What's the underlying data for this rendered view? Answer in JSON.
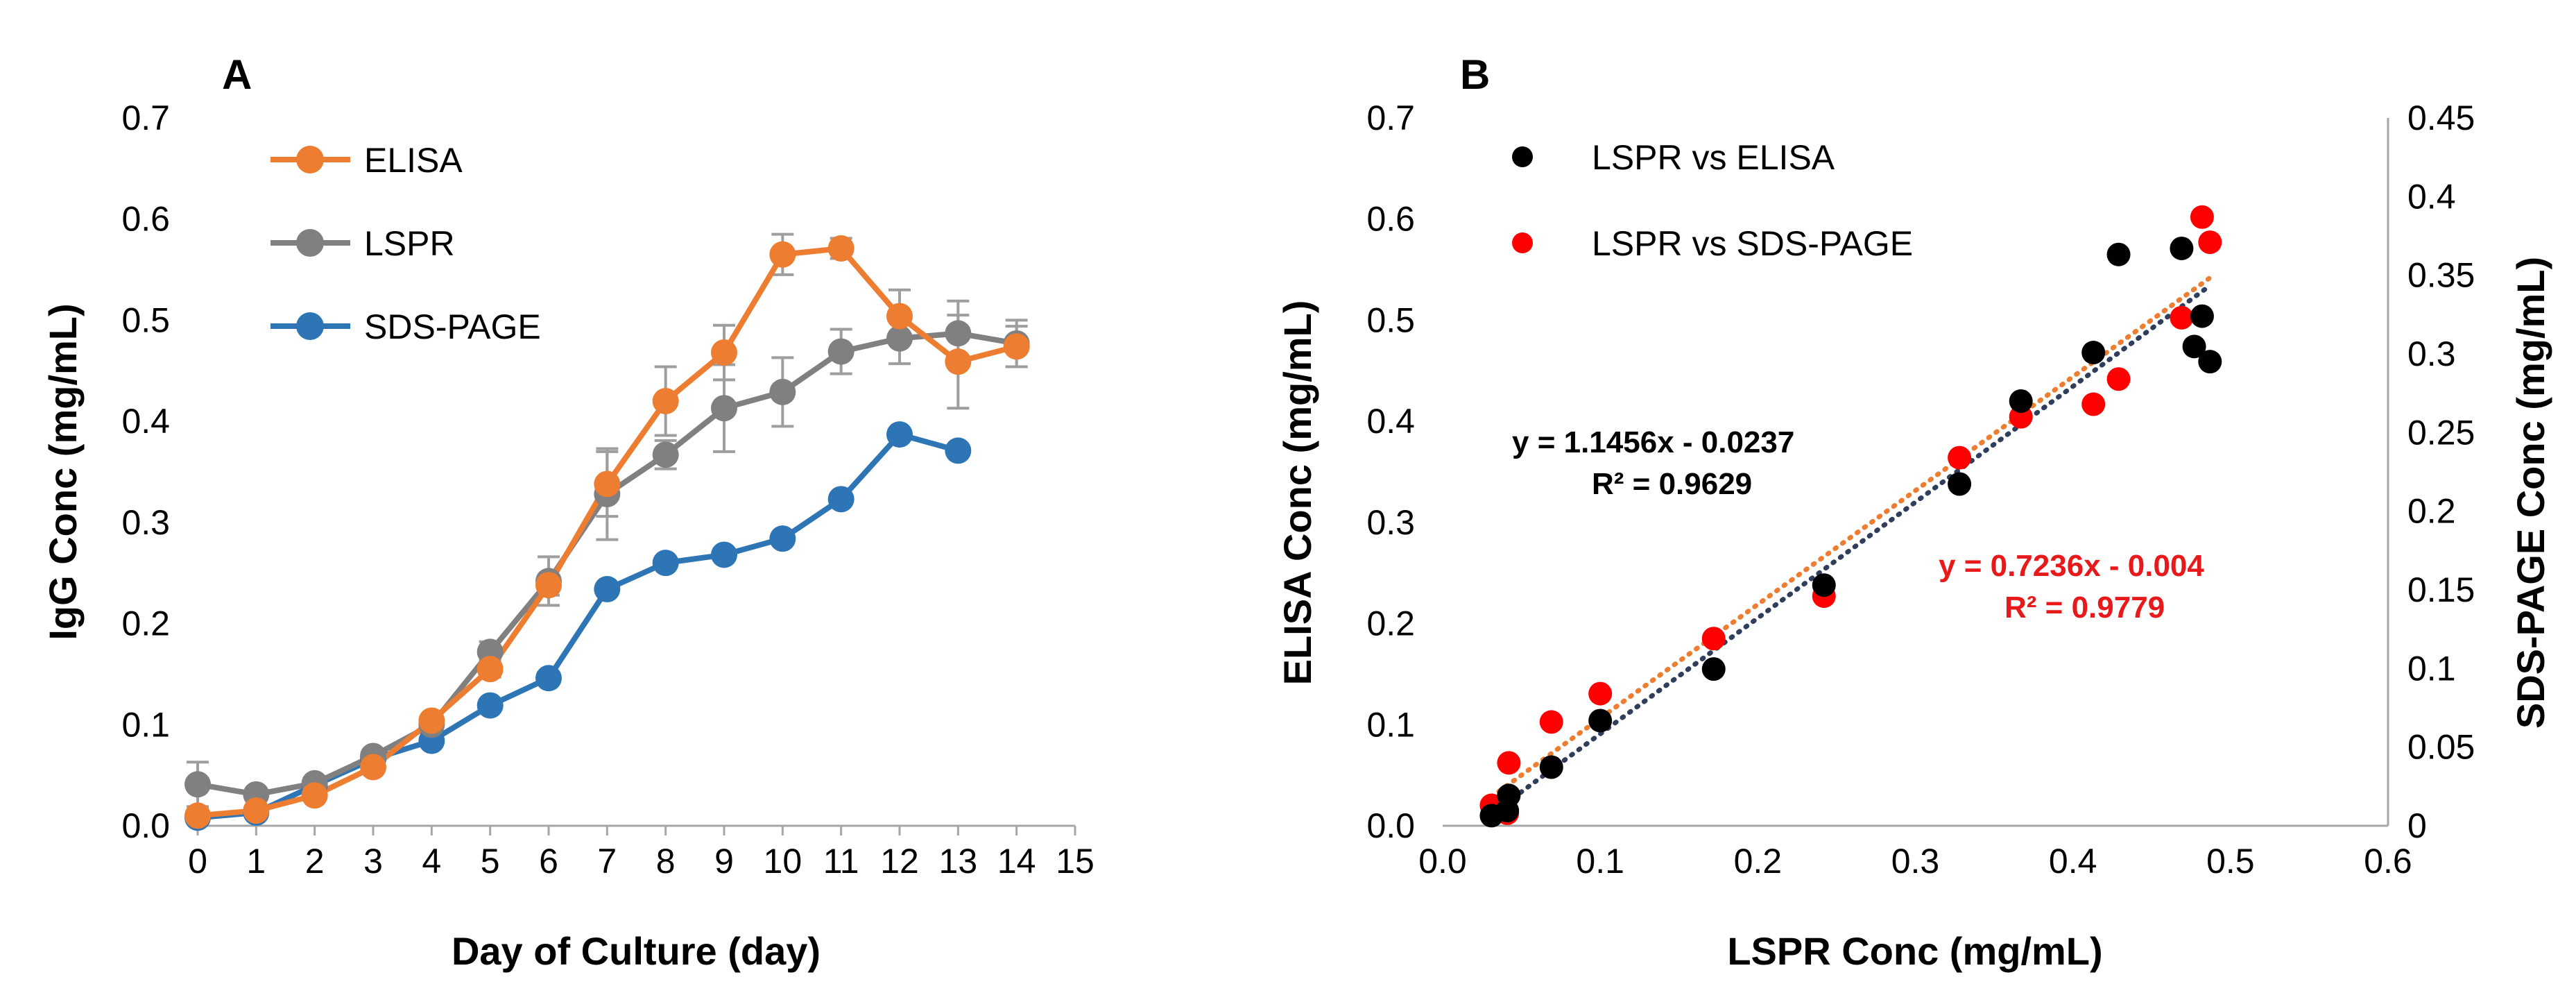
{
  "chart_data": [
    {
      "type": "line",
      "panel_label": "A",
      "xlabel": "Day of Culture (day)",
      "ylabel": "IgG Conc (mg/mL)",
      "xlim": [
        0,
        15
      ],
      "ylim": [
        0,
        0.7
      ],
      "x_ticks": [
        "0",
        "1",
        "2",
        "3",
        "4",
        "5",
        "6",
        "7",
        "8",
        "9",
        "10",
        "11",
        "12",
        "13",
        "14",
        "15"
      ],
      "y_ticks": [
        "0.0",
        "0.1",
        "0.2",
        "0.3",
        "0.4",
        "0.5",
        "0.6",
        "0.7"
      ],
      "grid": false,
      "legend_position": "top-left",
      "series": [
        {
          "name": "ELISA",
          "color": "#ED7D31",
          "x": [
            0,
            1,
            2,
            3,
            4,
            5,
            6,
            7,
            8,
            9,
            10,
            11,
            12,
            13,
            14
          ],
          "values": [
            0.01,
            0.015,
            0.03,
            0.058,
            0.104,
            0.155,
            0.238,
            0.338,
            0.42,
            0.468,
            0.565,
            0.571,
            0.504,
            0.459,
            0.474
          ],
          "errors": [
            0,
            0,
            0,
            0,
            0,
            0.008,
            0.01,
            0.032,
            0.034,
            0.027,
            0.02,
            0.01,
            0.026,
            0.046,
            0.02
          ]
        },
        {
          "name": "LSPR",
          "color": "#808080",
          "x": [
            0,
            1,
            2,
            3,
            4,
            5,
            6,
            7,
            8,
            9,
            10,
            11,
            12,
            13,
            14
          ],
          "values": [
            0.041,
            0.031,
            0.042,
            0.069,
            0.1,
            0.172,
            0.242,
            0.328,
            0.367,
            0.413,
            0.429,
            0.469,
            0.482,
            0.487,
            0.477
          ],
          "errors": [
            0.022,
            0,
            0,
            0,
            0.008,
            0.01,
            0.024,
            0.045,
            0.014,
            0.043,
            0.034,
            0.022,
            0.025,
            0.032,
            0.023
          ]
        },
        {
          "name": "SDS-PAGE",
          "color": "#2E75B6",
          "x": [
            0,
            1,
            2,
            3,
            4,
            5,
            6,
            7,
            8,
            9,
            10,
            11,
            12,
            13
          ],
          "values": [
            0.008,
            0.013,
            0.04,
            0.066,
            0.084,
            0.119,
            0.146,
            0.234,
            0.26,
            0.268,
            0.284,
            0.323,
            0.387,
            0.371
          ],
          "errors": []
        }
      ]
    },
    {
      "type": "scatter",
      "panel_label": "B",
      "xlabel": "LSPR Conc (mg/mL)",
      "ylabel": "ELISA Conc (mg/mL)",
      "y2label": "SDS-PAGE Conc (mg/mL)",
      "xlim": [
        0,
        0.6
      ],
      "ylim": [
        0,
        0.7
      ],
      "y2lim": [
        0,
        0.45
      ],
      "x_ticks": [
        "0.0",
        "0.1",
        "0.2",
        "0.3",
        "0.4",
        "0.5",
        "0.6"
      ],
      "y_ticks": [
        "0.0",
        "0.1",
        "0.2",
        "0.3",
        "0.4",
        "0.5",
        "0.6",
        "0.7"
      ],
      "y2_ticks": [
        "0",
        "0.05",
        "0.1",
        "0.15",
        "0.2",
        "0.25",
        "0.3",
        "0.35",
        "0.4",
        "0.45"
      ],
      "grid": false,
      "legend_position": "top-left",
      "series": [
        {
          "name": "LSPR vs ELISA",
          "color": "#000000",
          "axis": "left",
          "x": [
            0.031,
            0.041,
            0.042,
            0.069,
            0.1,
            0.172,
            0.242,
            0.328,
            0.367,
            0.413,
            0.429,
            0.469,
            0.482,
            0.487,
            0.477
          ],
          "y": [
            0.01,
            0.015,
            0.03,
            0.058,
            0.104,
            0.155,
            0.238,
            0.338,
            0.42,
            0.468,
            0.565,
            0.571,
            0.504,
            0.459,
            0.474
          ],
          "trendline": {
            "slope": 1.1456,
            "intercept": -0.0237,
            "color": "#2F3E5A",
            "equation": "y = 1.1456x - 0.0237",
            "r2": "R² = 0.9629"
          }
        },
        {
          "name": "LSPR vs SDS-PAGE",
          "color": "#FF0000",
          "axis": "right",
          "x": [
            0.031,
            0.041,
            0.042,
            0.069,
            0.1,
            0.172,
            0.242,
            0.328,
            0.367,
            0.413,
            0.429,
            0.469,
            0.482,
            0.487
          ],
          "y": [
            0.013,
            0.008,
            0.04,
            0.066,
            0.084,
            0.119,
            0.146,
            0.234,
            0.26,
            0.268,
            0.284,
            0.323,
            0.387,
            0.371
          ],
          "trendline": {
            "slope": 0.7236,
            "intercept": -0.004,
            "color": "#ED7D31",
            "equation": "y = 0.7236x - 0.004",
            "r2": "R² = 0.9779"
          }
        }
      ]
    }
  ]
}
